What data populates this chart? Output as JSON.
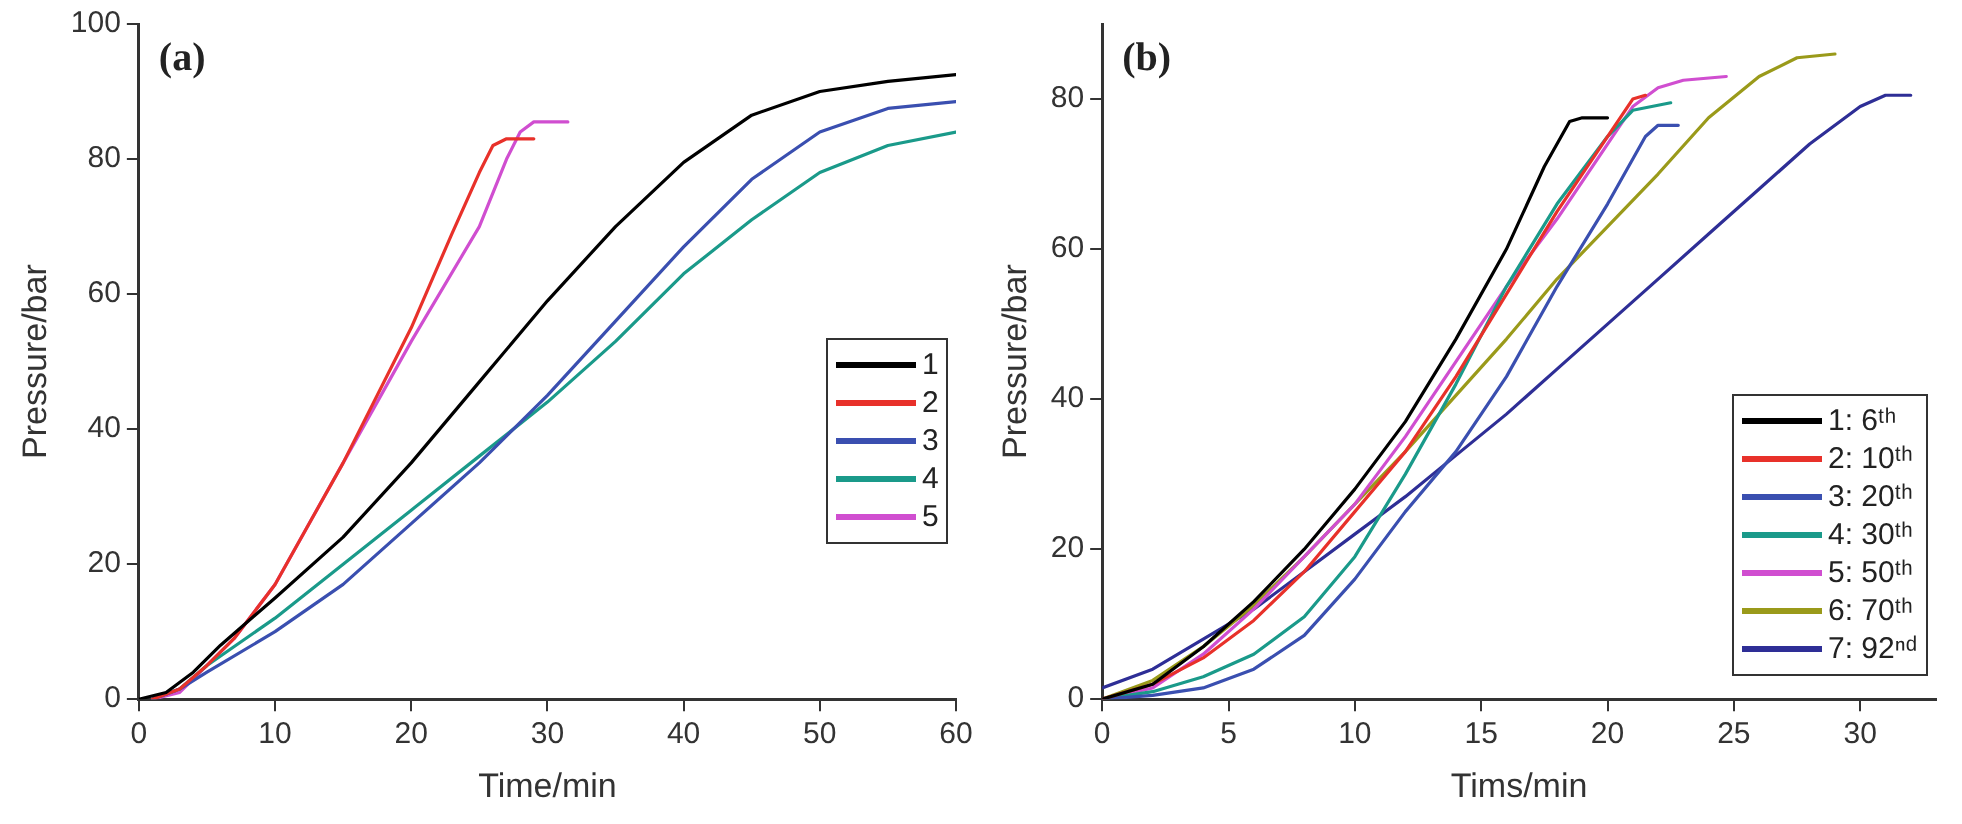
{
  "chart_data": [
    {
      "type": "line",
      "xlabel": "Time/min",
      "ylabel": "Pressure/bar",
      "annotations": [
        "(a)"
      ],
      "xlim": [
        0,
        60
      ],
      "ylim": [
        0,
        100
      ],
      "xticks": [
        0,
        10,
        20,
        30,
        40,
        50,
        60
      ],
      "yticks": [
        0,
        20,
        40,
        60,
        80,
        100
      ],
      "grid": false,
      "legend": "right",
      "series": [
        {
          "name": "1",
          "color": "#000000",
          "x": [
            0,
            2,
            4,
            6,
            10,
            15,
            20,
            25,
            30,
            35,
            40,
            45,
            50,
            55,
            60
          ],
          "values": [
            0,
            1,
            4,
            8,
            15,
            24,
            35,
            47,
            59,
            70,
            79.5,
            86.5,
            90,
            91.5,
            92.5
          ]
        },
        {
          "name": "2",
          "color": "#e8312a",
          "x": [
            1,
            3,
            5,
            7,
            10,
            15,
            20,
            23,
            25,
            26,
            27,
            29
          ],
          "values": [
            0,
            1.5,
            5,
            9,
            17,
            35,
            55,
            69,
            78,
            82,
            83,
            83
          ]
        },
        {
          "name": "3",
          "color": "#3a4fb0",
          "x": [
            1,
            3,
            5,
            10,
            15,
            20,
            25,
            30,
            35,
            40,
            45,
            50,
            55,
            60
          ],
          "values": [
            0,
            1.5,
            4,
            10,
            17,
            26,
            35,
            45,
            56,
            67,
            77,
            84,
            87.5,
            88.5
          ]
        },
        {
          "name": "4",
          "color": "#1a9a8a",
          "x": [
            1,
            3,
            5,
            10,
            15,
            20,
            25,
            30,
            35,
            40,
            45,
            50,
            55,
            60
          ],
          "values": [
            0,
            1.5,
            5,
            12,
            20,
            28,
            36,
            44,
            53,
            63,
            71,
            78,
            82,
            84
          ]
        },
        {
          "name": "5",
          "color": "#d04ed0",
          "x": [
            1,
            3,
            5,
            7,
            10,
            15,
            20,
            25,
            27,
            28,
            29,
            31.5
          ],
          "values": [
            0,
            1,
            5,
            9,
            17,
            35,
            53,
            70,
            80,
            84,
            85.5,
            85.5
          ]
        }
      ]
    },
    {
      "type": "line",
      "xlabel": "Tims/min",
      "ylabel": "Pressure/bar",
      "annotations": [
        "(b)"
      ],
      "xlim": [
        0,
        33
      ],
      "ylim": [
        0,
        90
      ],
      "xticks": [
        0,
        5,
        10,
        15,
        20,
        25,
        30
      ],
      "yticks": [
        0,
        20,
        40,
        60,
        80
      ],
      "grid": false,
      "legend": "bottom right",
      "series": [
        {
          "name": "1: 6ᵗʰ",
          "color": "#000000",
          "x": [
            0,
            2,
            4,
            6,
            8,
            10,
            12,
            14,
            16,
            17.5,
            18.5,
            19,
            20
          ],
          "values": [
            0,
            2,
            7,
            13,
            20,
            28,
            37,
            48,
            60,
            71,
            77,
            77.5,
            77.5
          ]
        },
        {
          "name": "2: 10ᵗʰ",
          "color": "#e8312a",
          "x": [
            0,
            2,
            4,
            6,
            8,
            10,
            12,
            14,
            16,
            18,
            20,
            21,
            21.5
          ],
          "values": [
            0,
            2,
            5.5,
            10.5,
            17,
            25,
            33,
            43,
            54,
            65,
            75,
            80,
            80.5
          ]
        },
        {
          "name": "3: 20ᵗʰ",
          "color": "#3a4fb0",
          "x": [
            0,
            2,
            4,
            6,
            8,
            10,
            12,
            14,
            16,
            18,
            20,
            21.5,
            22,
            22.8
          ],
          "values": [
            0,
            0.5,
            1.5,
            4,
            8.5,
            16,
            25,
            33,
            43,
            55,
            66,
            75,
            76.5,
            76.5
          ]
        },
        {
          "name": "4: 30ᵗʰ",
          "color": "#1a9a8a",
          "x": [
            0,
            2,
            4,
            6,
            8,
            10,
            12,
            14,
            16,
            18,
            20,
            21,
            22.5
          ],
          "values": [
            0,
            1,
            3,
            6,
            11,
            19,
            30,
            42,
            55,
            66,
            75,
            78.5,
            79.5
          ]
        },
        {
          "name": "5: 50ᵗʰ",
          "color": "#d04ed0",
          "x": [
            0,
            2,
            4,
            6,
            8,
            10,
            12,
            14,
            16,
            18,
            20,
            21,
            22,
            23,
            24.7
          ],
          "values": [
            0,
            1.5,
            6,
            12,
            19,
            26,
            35,
            45,
            55,
            64,
            74,
            79,
            81.5,
            82.5,
            83
          ]
        },
        {
          "name": "6: 70ᵗʰ",
          "color": "#9a9a1a",
          "x": [
            0,
            2,
            4,
            6,
            8,
            10,
            12,
            14,
            16,
            18,
            20,
            22,
            24,
            26,
            27.5,
            29
          ],
          "values": [
            0,
            2.5,
            7,
            12.5,
            19,
            26,
            33,
            40.5,
            48,
            56,
            63,
            70,
            77.5,
            83,
            85.5,
            86
          ]
        },
        {
          "name": "7: 92ⁿᵈ",
          "color": "#2e2e96",
          "x": [
            0,
            2,
            4,
            6,
            8,
            10,
            12,
            14,
            16,
            18,
            20,
            22,
            24,
            26,
            28,
            30,
            31,
            32
          ],
          "values": [
            1.5,
            4,
            8,
            12,
            17,
            22,
            27,
            32.5,
            38,
            44,
            50,
            56,
            62,
            68,
            74,
            79,
            80.5,
            80.5
          ]
        }
      ]
    }
  ]
}
